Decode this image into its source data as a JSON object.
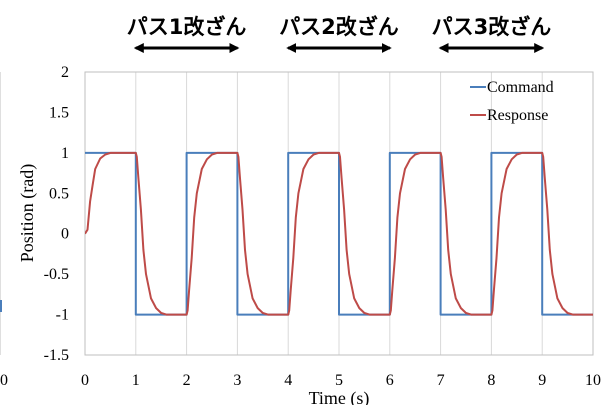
{
  "chart_data": {
    "type": "line",
    "xlabel": "Time (s)",
    "ylabel": "Position (rad)",
    "xlim": [
      0,
      10
    ],
    "ylim": [
      -1.5,
      2
    ],
    "x_ticks": [
      "0",
      "1",
      "2",
      "3",
      "4",
      "5",
      "6",
      "7",
      "8",
      "9",
      "10"
    ],
    "y_ticks": [
      "2",
      "1.5",
      "1",
      "0.5",
      "0",
      "-0.5",
      "-1",
      "-1.5"
    ],
    "grid": "vertical",
    "legend": "top-right",
    "series": [
      {
        "name": "Command",
        "color": "#4a7ebb",
        "x": [
          0,
          1,
          1,
          2,
          2,
          3,
          3,
          4,
          4,
          5,
          5,
          6,
          6,
          7,
          7,
          8,
          8,
          9,
          9,
          10
        ],
        "y": [
          1,
          1,
          -1,
          -1,
          1,
          1,
          -1,
          -1,
          1,
          1,
          -1,
          -1,
          1,
          1,
          -1,
          -1,
          1,
          1,
          -1,
          -1
        ]
      },
      {
        "name": "Response",
        "color": "#be4b48",
        "x": [
          0,
          0.05,
          0.1,
          0.15,
          0.2,
          0.3,
          0.4,
          0.5,
          0.6,
          0.8,
          1.0,
          1.02,
          1.05,
          1.1,
          1.15,
          1.2,
          1.3,
          1.4,
          1.5,
          1.6,
          1.8,
          2.0,
          2.02,
          2.05,
          2.1,
          2.15,
          2.2,
          2.3,
          2.4,
          2.5,
          2.6,
          2.8,
          3.0,
          3.02,
          3.05,
          3.1,
          3.15,
          3.2,
          3.3,
          3.4,
          3.5,
          3.6,
          3.8,
          4.0,
          4.02,
          4.05,
          4.1,
          4.15,
          4.2,
          4.3,
          4.4,
          4.5,
          4.6,
          4.8,
          5.0,
          5.02,
          5.05,
          5.1,
          5.15,
          5.2,
          5.3,
          5.4,
          5.5,
          5.6,
          5.8,
          6.0,
          6.02,
          6.05,
          6.1,
          6.15,
          6.2,
          6.3,
          6.4,
          6.5,
          6.6,
          6.8,
          7.0,
          7.02,
          7.05,
          7.1,
          7.15,
          7.2,
          7.3,
          7.4,
          7.5,
          7.6,
          7.8,
          8.0,
          8.02,
          8.05,
          8.1,
          8.15,
          8.2,
          8.3,
          8.4,
          8.5,
          8.6,
          8.8,
          9.0,
          9.02,
          9.05,
          9.1,
          9.15,
          9.2,
          9.3,
          9.4,
          9.5,
          9.6,
          9.8,
          10.0
        ],
        "y": [
          0,
          0.05,
          0.4,
          0.6,
          0.8,
          0.93,
          0.98,
          1.0,
          1.0,
          1.0,
          1.0,
          0.95,
          0.7,
          0.3,
          -0.2,
          -0.5,
          -0.8,
          -0.92,
          -0.98,
          -1.0,
          -1.0,
          -1.0,
          -0.95,
          -0.7,
          -0.3,
          0.2,
          0.5,
          0.8,
          0.92,
          0.98,
          1.0,
          1.0,
          1.0,
          0.95,
          0.7,
          0.3,
          -0.2,
          -0.5,
          -0.8,
          -0.92,
          -0.98,
          -1.0,
          -1.0,
          -1.0,
          -0.95,
          -0.7,
          -0.3,
          0.2,
          0.5,
          0.8,
          0.92,
          0.98,
          1.0,
          1.0,
          1.0,
          0.95,
          0.7,
          0.3,
          -0.2,
          -0.5,
          -0.8,
          -0.92,
          -0.98,
          -1.0,
          -1.0,
          -1.0,
          -0.95,
          -0.7,
          -0.3,
          0.2,
          0.5,
          0.8,
          0.92,
          0.98,
          1.0,
          1.0,
          1.0,
          0.95,
          0.7,
          0.3,
          -0.2,
          -0.5,
          -0.8,
          -0.92,
          -0.98,
          -1.0,
          -1.0,
          -1.0,
          -0.95,
          -0.7,
          -0.3,
          0.2,
          0.5,
          0.8,
          0.92,
          0.98,
          1.0,
          1.0,
          1.0,
          0.95,
          0.7,
          0.3,
          -0.2,
          -0.5,
          -0.8,
          -0.92,
          -0.98,
          -1.0,
          -1.0,
          -1.0
        ]
      }
    ],
    "annotations": [
      {
        "text": "パス1改ざん",
        "x_start": 1,
        "x_end": 3
      },
      {
        "text": "パス2改ざん",
        "x_start": 4,
        "x_end": 6
      },
      {
        "text": "パス3改ざん",
        "x_start": 7,
        "x_end": 9
      }
    ]
  },
  "clipped_left_panel": {
    "x_tick": "0",
    "color": "#4a7ebb"
  }
}
